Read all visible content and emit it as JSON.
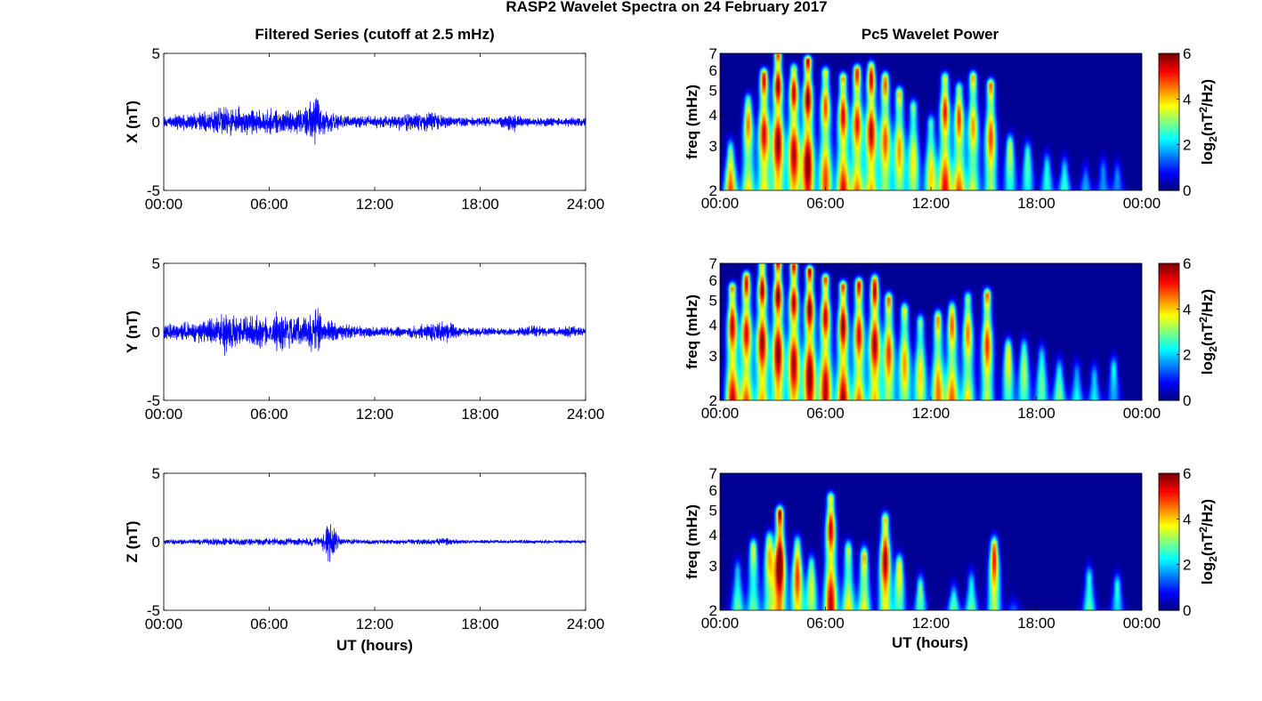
{
  "figure": {
    "title": "RASP2 Wavelet Spectra on 24 February 2017",
    "left_title": "Filtered Series (cutoff at 2.5 mHz)",
    "right_title": "Pc5 Wavelet Power",
    "x_label": "UT (hours)"
  },
  "colors": {
    "trace": "#0000ff",
    "axis": "#000000",
    "background": "#ffffff",
    "colormap": "jet"
  },
  "chart_data": [
    {
      "type": "line",
      "component": "X",
      "ylabel": "X (nT)",
      "xlim": [
        0,
        24
      ],
      "ylim": [
        -5,
        5
      ],
      "xticks": [
        "00:00",
        "06:00",
        "12:00",
        "18:00",
        "24:00"
      ],
      "yticks": [
        "-5",
        "0",
        "5"
      ],
      "x": [
        0,
        1,
        2,
        3,
        4,
        5,
        6,
        7,
        8,
        8.6,
        9,
        10,
        11,
        12,
        13,
        14,
        15,
        16,
        17,
        18,
        19,
        20,
        20,
        21,
        22,
        23,
        24
      ],
      "envelope": [
        0.6,
        0.7,
        0.8,
        1.1,
        1.3,
        1.0,
        1.2,
        0.9,
        1.1,
        2.2,
        1.2,
        0.6,
        0.5,
        0.5,
        0.6,
        0.8,
        0.9,
        0.5,
        0.4,
        0.4,
        0.4,
        0.9,
        0.6,
        0.4,
        0.4,
        0.4,
        0.4
      ],
      "grid": false
    },
    {
      "type": "line",
      "component": "Y",
      "ylabel": "Y (nT)",
      "xlim": [
        0,
        24
      ],
      "ylim": [
        -5,
        5
      ],
      "xticks": [
        "00:00",
        "06:00",
        "12:00",
        "18:00",
        "24:00"
      ],
      "yticks": [
        "-5",
        "0",
        "5"
      ],
      "x": [
        0,
        1,
        2,
        3,
        3.5,
        4,
        5,
        6,
        6.7,
        7,
        8,
        8.8,
        9,
        10,
        11,
        12,
        13,
        14,
        15,
        16,
        17,
        18,
        19,
        20,
        21,
        22,
        23,
        24
      ],
      "envelope": [
        0.6,
        0.8,
        0.9,
        1.2,
        2.3,
        1.5,
        1.4,
        1.2,
        1.9,
        1.5,
        1.2,
        2.3,
        1.2,
        0.7,
        0.5,
        0.4,
        0.4,
        0.5,
        0.8,
        1.0,
        0.4,
        0.4,
        0.3,
        0.3,
        0.6,
        0.3,
        0.5,
        0.3
      ],
      "grid": false
    },
    {
      "type": "line",
      "component": "Z",
      "ylabel": "Z (nT)",
      "xlim": [
        0,
        24
      ],
      "ylim": [
        -5,
        5
      ],
      "xticks": [
        "00:00",
        "06:00",
        "12:00",
        "18:00",
        "24:00"
      ],
      "yticks": [
        "-5",
        "0",
        "5"
      ],
      "x": [
        0,
        1,
        2,
        3,
        4,
        5,
        6,
        7,
        8,
        9,
        9.3,
        10,
        11,
        12,
        13,
        14,
        15,
        16,
        17,
        18,
        19,
        20,
        21,
        22,
        23,
        24
      ],
      "envelope": [
        0.2,
        0.2,
        0.25,
        0.3,
        0.3,
        0.3,
        0.35,
        0.3,
        0.35,
        0.4,
        2.4,
        0.3,
        0.2,
        0.2,
        0.2,
        0.2,
        0.25,
        0.3,
        0.15,
        0.15,
        0.15,
        0.15,
        0.15,
        0.15,
        0.15,
        0.15
      ],
      "grid": false
    },
    {
      "type": "heatmap",
      "component": "X",
      "ylabel": "freq (mHz)",
      "yscale": "log",
      "ylim": [
        2,
        7
      ],
      "yticks": [
        "2",
        "3",
        "4",
        "5",
        "6",
        "7"
      ],
      "xlim": [
        0,
        24
      ],
      "xticks": [
        "00:00",
        "06:00",
        "12:00",
        "18:00",
        "00:00"
      ],
      "colorbar": {
        "label": "log2(nT2/Hz)",
        "label_base": "log",
        "label_sub": "2",
        "label_open": "(nT",
        "label_sup": "2",
        "label_close": "/Hz)",
        "range": [
          0,
          6
        ],
        "ticks": [
          "0",
          "2",
          "4",
          "6"
        ]
      },
      "bursts": [
        [
          0.6,
          4.5,
          2.8
        ],
        [
          1.6,
          4.2,
          4.5
        ],
        [
          2.5,
          5.0,
          5.8
        ],
        [
          3.3,
          5.5,
          6.8
        ],
        [
          4.2,
          5.2,
          6.0
        ],
        [
          5.0,
          5.6,
          6.5
        ],
        [
          6.0,
          4.5,
          5.8
        ],
        [
          7.0,
          5.0,
          5.5
        ],
        [
          7.8,
          4.8,
          6.0
        ],
        [
          8.6,
          5.2,
          6.2
        ],
        [
          9.4,
          4.4,
          5.6
        ],
        [
          10.2,
          4.0,
          4.8
        ],
        [
          11.0,
          3.5,
          4.2
        ],
        [
          12.0,
          3.6,
          3.6
        ],
        [
          12.8,
          4.8,
          5.5
        ],
        [
          13.6,
          4.6,
          5.0
        ],
        [
          14.4,
          4.0,
          5.6
        ],
        [
          15.4,
          4.5,
          5.2
        ],
        [
          16.5,
          3.2,
          3.0
        ],
        [
          17.5,
          2.5,
          2.8
        ],
        [
          18.6,
          2.2,
          2.5
        ],
        [
          19.6,
          2.4,
          2.4
        ],
        [
          20.8,
          2.0,
          2.2
        ],
        [
          21.8,
          2.2,
          2.3
        ],
        [
          22.6,
          2.0,
          2.2
        ]
      ],
      "grid": false
    },
    {
      "type": "heatmap",
      "component": "Y",
      "ylabel": "freq (mHz)",
      "yscale": "log",
      "ylim": [
        2,
        7
      ],
      "yticks": [
        "2",
        "3",
        "4",
        "5",
        "6",
        "7"
      ],
      "xlim": [
        0,
        24
      ],
      "xticks": [
        "00:00",
        "06:00",
        "12:00",
        "18:00",
        "00:00"
      ],
      "colorbar": {
        "label": "log2(nT2/Hz)",
        "label_base": "log",
        "label_sub": "2",
        "label_open": "(nT",
        "label_sup": "2",
        "label_close": "/Hz)",
        "range": [
          0,
          6
        ],
        "ticks": [
          "0",
          "2",
          "4",
          "6"
        ]
      },
      "bursts": [
        [
          0.7,
          5.2,
          5.5
        ],
        [
          1.5,
          5.0,
          6.2
        ],
        [
          2.4,
          5.4,
          6.8
        ],
        [
          3.3,
          5.6,
          7.0
        ],
        [
          4.2,
          5.3,
          6.8
        ],
        [
          5.1,
          5.6,
          6.5
        ],
        [
          6.0,
          5.2,
          6.0
        ],
        [
          7.0,
          5.5,
          5.6
        ],
        [
          7.9,
          5.0,
          5.8
        ],
        [
          8.8,
          5.4,
          6.0
        ],
        [
          9.6,
          4.6,
          5.0
        ],
        [
          10.5,
          4.0,
          4.5
        ],
        [
          11.4,
          3.6,
          4.0
        ],
        [
          12.4,
          4.2,
          4.2
        ],
        [
          13.2,
          4.4,
          4.6
        ],
        [
          14.1,
          4.2,
          5.0
        ],
        [
          15.2,
          4.6,
          5.2
        ],
        [
          16.4,
          3.6,
          3.2
        ],
        [
          17.3,
          3.0,
          3.2
        ],
        [
          18.3,
          2.6,
          3.0
        ],
        [
          19.3,
          2.8,
          2.6
        ],
        [
          20.3,
          2.4,
          2.5
        ],
        [
          21.3,
          2.8,
          2.4
        ],
        [
          22.4,
          2.4,
          2.6
        ]
      ],
      "grid": false
    },
    {
      "type": "heatmap",
      "component": "Z",
      "ylabel": "freq (mHz)",
      "yscale": "log",
      "ylim": [
        2,
        7
      ],
      "yticks": [
        "2",
        "3",
        "4",
        "5",
        "6",
        "7"
      ],
      "xlim": [
        0,
        24
      ],
      "xticks": [
        "00:00",
        "06:00",
        "12:00",
        "18:00",
        "00:00"
      ],
      "colorbar": {
        "label": "log2(nT2/Hz)",
        "label_base": "log",
        "label_sub": "2",
        "label_open": "(nT",
        "label_sup": "2",
        "label_close": "/Hz)",
        "range": [
          0,
          6
        ],
        "ticks": [
          "0",
          "2",
          "4",
          "6"
        ]
      },
      "bursts": [
        [
          1.0,
          2.8,
          2.8
        ],
        [
          1.9,
          3.4,
          3.5
        ],
        [
          2.8,
          3.8,
          3.8
        ],
        [
          3.4,
          6.2,
          4.8
        ],
        [
          4.4,
          4.6,
          3.6
        ],
        [
          5.2,
          3.2,
          3.0
        ],
        [
          6.3,
          5.2,
          5.5
        ],
        [
          7.3,
          3.8,
          3.4
        ],
        [
          8.2,
          4.4,
          3.2
        ],
        [
          9.4,
          5.4,
          4.5
        ],
        [
          10.2,
          3.6,
          3.0
        ],
        [
          11.4,
          2.8,
          2.4
        ],
        [
          13.3,
          2.6,
          2.2
        ],
        [
          14.3,
          3.2,
          2.5
        ],
        [
          15.6,
          4.8,
          3.6
        ],
        [
          16.7,
          2.4,
          1.8
        ],
        [
          21.0,
          3.4,
          2.6
        ],
        [
          22.6,
          2.8,
          2.4
        ]
      ],
      "grid": false
    }
  ]
}
